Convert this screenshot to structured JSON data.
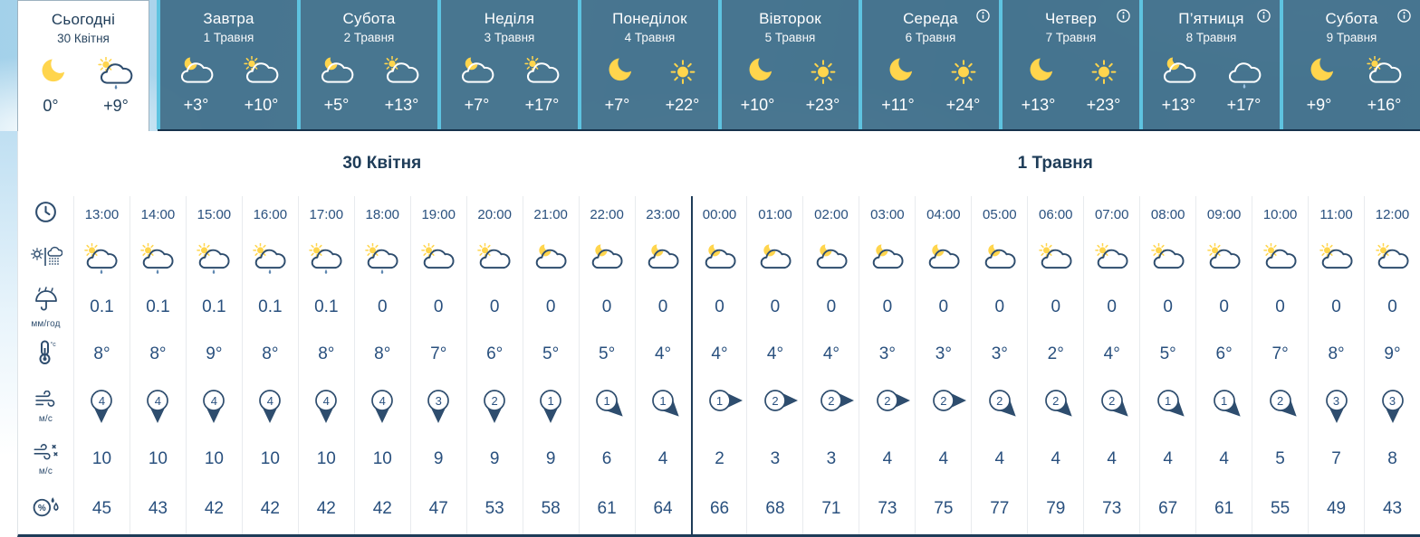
{
  "colors": {
    "card_bg": "#406e89",
    "card_stripe": "#5ec3e0",
    "navy": "#1e3c58",
    "table_text": "#29507e",
    "icon_navy": "#2e4d6e",
    "sun_yellow": "#FFD54D"
  },
  "day_cards": [
    {
      "title": "Сьогодні",
      "date": "30 Квітня",
      "night_icon": "moon",
      "day_icon": "sun-cloud-rain",
      "night_temp": "0°",
      "day_temp": "+9°",
      "active": true,
      "info": false
    },
    {
      "title": "Завтра",
      "date": "1 Травня",
      "night_icon": "moon-cloud",
      "day_icon": "sun-cloud",
      "night_temp": "+3°",
      "day_temp": "+10°",
      "active": false,
      "info": false
    },
    {
      "title": "Субота",
      "date": "2 Травня",
      "night_icon": "moon-cloud",
      "day_icon": "sun-cloud",
      "night_temp": "+5°",
      "day_temp": "+13°",
      "active": false,
      "info": false
    },
    {
      "title": "Неділя",
      "date": "3 Травня",
      "night_icon": "moon-cloud",
      "day_icon": "sun-cloud",
      "night_temp": "+7°",
      "day_temp": "+17°",
      "active": false,
      "info": false
    },
    {
      "title": "Понеділок",
      "date": "4 Травня",
      "night_icon": "moon",
      "day_icon": "sun",
      "night_temp": "+7°",
      "day_temp": "+22°",
      "active": false,
      "info": false
    },
    {
      "title": "Вівторок",
      "date": "5 Травня",
      "night_icon": "moon",
      "day_icon": "sun",
      "night_temp": "+10°",
      "day_temp": "+23°",
      "active": false,
      "info": false
    },
    {
      "title": "Середа",
      "date": "6 Травня",
      "night_icon": "moon",
      "day_icon": "sun",
      "night_temp": "+11°",
      "day_temp": "+24°",
      "active": false,
      "info": true
    },
    {
      "title": "Четвер",
      "date": "7 Травня",
      "night_icon": "moon",
      "day_icon": "sun",
      "night_temp": "+13°",
      "day_temp": "+23°",
      "active": false,
      "info": true
    },
    {
      "title": "П’ятниця",
      "date": "8 Травня",
      "night_icon": "moon-cloud",
      "day_icon": "cloud-rain",
      "night_temp": "+13°",
      "day_temp": "+17°",
      "active": false,
      "info": true
    },
    {
      "title": "Субота",
      "date": "9 Травня",
      "night_icon": "moon",
      "day_icon": "sun-cloud",
      "night_temp": "+9°",
      "day_temp": "+16°",
      "active": false,
      "info": true
    }
  ],
  "hourly": {
    "sections": [
      {
        "label": "30 Квітня",
        "cols": 11
      },
      {
        "label": "1 Травня",
        "cols": 13
      }
    ],
    "units": {
      "precipitation": "мм/год",
      "wind": "м/с",
      "gusts": "м/с"
    },
    "columns": [
      {
        "time": "13:00",
        "condition": "sun-cloud-rain",
        "precipitation": "0.1",
        "temperature": "8°",
        "wind_speed": 4,
        "wind_direction": "down",
        "gusts": 10,
        "humidity": 45
      },
      {
        "time": "14:00",
        "condition": "sun-cloud-rain",
        "precipitation": "0.1",
        "temperature": "8°",
        "wind_speed": 4,
        "wind_direction": "down",
        "gusts": 10,
        "humidity": 43
      },
      {
        "time": "15:00",
        "condition": "sun-cloud-rain",
        "precipitation": "0.1",
        "temperature": "9°",
        "wind_speed": 4,
        "wind_direction": "down",
        "gusts": 10,
        "humidity": 42
      },
      {
        "time": "16:00",
        "condition": "sun-cloud-rain",
        "precipitation": "0.1",
        "temperature": "8°",
        "wind_speed": 4,
        "wind_direction": "down",
        "gusts": 10,
        "humidity": 42
      },
      {
        "time": "17:00",
        "condition": "sun-cloud-rain",
        "precipitation": "0.1",
        "temperature": "8°",
        "wind_speed": 4,
        "wind_direction": "down",
        "gusts": 10,
        "humidity": 42
      },
      {
        "time": "18:00",
        "condition": "sun-cloud-rain",
        "precipitation": "0",
        "temperature": "8°",
        "wind_speed": 4,
        "wind_direction": "down",
        "gusts": 10,
        "humidity": 42
      },
      {
        "time": "19:00",
        "condition": "sun-cloud",
        "precipitation": "0",
        "temperature": "7°",
        "wind_speed": 3,
        "wind_direction": "down",
        "gusts": 9,
        "humidity": 47
      },
      {
        "time": "20:00",
        "condition": "sun-cloud",
        "precipitation": "0",
        "temperature": "6°",
        "wind_speed": 2,
        "wind_direction": "down",
        "gusts": 9,
        "humidity": 53
      },
      {
        "time": "21:00",
        "condition": "moon-cloud",
        "precipitation": "0",
        "temperature": "5°",
        "wind_speed": 1,
        "wind_direction": "down",
        "gusts": 9,
        "humidity": 58
      },
      {
        "time": "22:00",
        "condition": "moon-cloud",
        "precipitation": "0",
        "temperature": "5°",
        "wind_speed": 1,
        "wind_direction": "down-right",
        "gusts": 6,
        "humidity": 61
      },
      {
        "time": "23:00",
        "condition": "moon-cloud",
        "precipitation": "0",
        "temperature": "4°",
        "wind_speed": 1,
        "wind_direction": "down-right",
        "gusts": 4,
        "humidity": 64
      },
      {
        "time": "00:00",
        "condition": "moon-cloud",
        "precipitation": "0",
        "temperature": "4°",
        "wind_speed": 1,
        "wind_direction": "right",
        "gusts": 2,
        "humidity": 66
      },
      {
        "time": "01:00",
        "condition": "moon-cloud",
        "precipitation": "0",
        "temperature": "4°",
        "wind_speed": 2,
        "wind_direction": "right",
        "gusts": 3,
        "humidity": 68
      },
      {
        "time": "02:00",
        "condition": "moon-cloud",
        "precipitation": "0",
        "temperature": "4°",
        "wind_speed": 2,
        "wind_direction": "right",
        "gusts": 3,
        "humidity": 71
      },
      {
        "time": "03:00",
        "condition": "moon-cloud",
        "precipitation": "0",
        "temperature": "3°",
        "wind_speed": 2,
        "wind_direction": "right",
        "gusts": 4,
        "humidity": 73
      },
      {
        "time": "04:00",
        "condition": "moon-cloud",
        "precipitation": "0",
        "temperature": "3°",
        "wind_speed": 2,
        "wind_direction": "right",
        "gusts": 4,
        "humidity": 75
      },
      {
        "time": "05:00",
        "condition": "moon-cloud",
        "precipitation": "0",
        "temperature": "3°",
        "wind_speed": 2,
        "wind_direction": "down-right",
        "gusts": 4,
        "humidity": 77
      },
      {
        "time": "06:00",
        "condition": "sun-cloud",
        "precipitation": "0",
        "temperature": "2°",
        "wind_speed": 2,
        "wind_direction": "down-right",
        "gusts": 4,
        "humidity": 79
      },
      {
        "time": "07:00",
        "condition": "sun-cloud",
        "precipitation": "0",
        "temperature": "4°",
        "wind_speed": 2,
        "wind_direction": "down-right",
        "gusts": 4,
        "humidity": 73
      },
      {
        "time": "08:00",
        "condition": "sun-cloud",
        "precipitation": "0",
        "temperature": "5°",
        "wind_speed": 1,
        "wind_direction": "down-right",
        "gusts": 4,
        "humidity": 67
      },
      {
        "time": "09:00",
        "condition": "sun-cloud",
        "precipitation": "0",
        "temperature": "6°",
        "wind_speed": 1,
        "wind_direction": "down-right",
        "gusts": 4,
        "humidity": 61
      },
      {
        "time": "10:00",
        "condition": "sun-cloud",
        "precipitation": "0",
        "temperature": "7°",
        "wind_speed": 2,
        "wind_direction": "down-right",
        "gusts": 5,
        "humidity": 55
      },
      {
        "time": "11:00",
        "condition": "sun-cloud",
        "precipitation": "0",
        "temperature": "8°",
        "wind_speed": 3,
        "wind_direction": "down",
        "gusts": 7,
        "humidity": 49
      },
      {
        "time": "12:00",
        "condition": "sun-cloud",
        "precipitation": "0",
        "temperature": "9°",
        "wind_speed": 3,
        "wind_direction": "down",
        "gusts": 8,
        "humidity": 43
      }
    ]
  }
}
